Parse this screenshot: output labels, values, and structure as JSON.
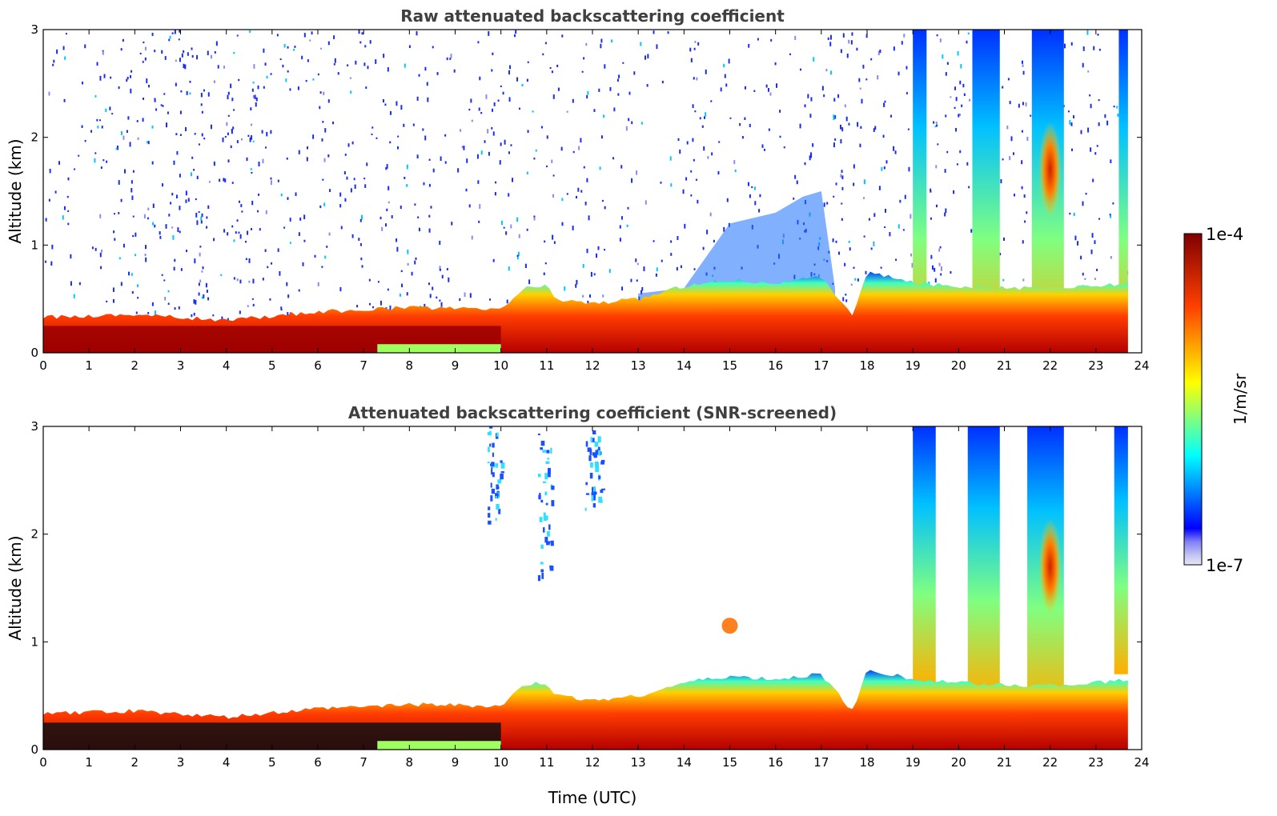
{
  "figure": {
    "colorbar": {
      "max_label": "1e-4",
      "min_label": "1e-7",
      "unit_label": "1/m/sr",
      "range": [
        1e-07,
        0.0001
      ],
      "scale": "log",
      "colormap": "jet",
      "low_end_colors": [
        "#e6e6f7",
        "#c3c3f3",
        "#a0a0f0",
        "#7b7bf2"
      ]
    }
  },
  "chart_data": [
    {
      "type": "heatmap",
      "title": "Raw attenuated backscattering coefficient",
      "xlabel": "",
      "ylabel": "Altitude (km)",
      "x_ticks": [
        "0",
        "1",
        "2",
        "3",
        "4",
        "5",
        "6",
        "7",
        "8",
        "9",
        "10",
        "11",
        "12",
        "13",
        "14",
        "15",
        "16",
        "17",
        "18",
        "19",
        "20",
        "21",
        "22",
        "23",
        "24"
      ],
      "y_ticks": [
        "0",
        "1",
        "2",
        "3"
      ],
      "xlim": [
        0,
        24
      ],
      "ylim": [
        0,
        3
      ],
      "x_units": "hours UTC",
      "y_units": "km",
      "grid": false,
      "features": {
        "boundary_layer_top_km": {
          "time": [
            0,
            2,
            4,
            6,
            8,
            10,
            10.5,
            11,
            11.2,
            12,
            13,
            14,
            15,
            16,
            17,
            17.4,
            17.7,
            18,
            19,
            20,
            21,
            22,
            23,
            23.7
          ],
          "height": [
            0.33,
            0.36,
            0.3,
            0.38,
            0.42,
            0.4,
            0.6,
            0.62,
            0.5,
            0.46,
            0.5,
            0.62,
            0.68,
            0.65,
            0.7,
            0.5,
            0.35,
            0.75,
            0.65,
            0.62,
            0.6,
            0.6,
            0.62,
            0.65
          ]
        },
        "aerosol_layer_top_km": {
          "time": [
            13,
            14,
            15,
            16,
            16.6,
            17,
            17.3
          ],
          "height": [
            0.55,
            0.6,
            1.2,
            1.3,
            1.45,
            1.5,
            0.6
          ]
        },
        "cloud_columns": [
          {
            "start": 19.0,
            "end": 19.3,
            "top_km": 3.0
          },
          {
            "start": 20.3,
            "end": 20.9,
            "top_km": 3.0
          },
          {
            "start": 21.6,
            "end": 22.3,
            "top_km": 3.0
          },
          {
            "start": 23.5,
            "end": 23.7,
            "top_km": 3.0
          }
        ],
        "peak_backscatter_time": 22.0,
        "peak_backscatter_height_km": 1.7,
        "data_end_time": 23.7
      }
    },
    {
      "type": "heatmap",
      "title": "Attenuated backscattering coefficient (SNR-screened)",
      "xlabel": "Time (UTC)",
      "ylabel": "Altitude (km)",
      "x_ticks": [
        "0",
        "1",
        "2",
        "3",
        "4",
        "5",
        "6",
        "7",
        "8",
        "9",
        "10",
        "11",
        "12",
        "13",
        "14",
        "15",
        "16",
        "17",
        "18",
        "19",
        "20",
        "21",
        "22",
        "23",
        "24"
      ],
      "y_ticks": [
        "0",
        "1",
        "2",
        "3"
      ],
      "xlim": [
        0,
        24
      ],
      "ylim": [
        0,
        3
      ],
      "x_units": "hours UTC",
      "y_units": "km",
      "grid": false,
      "features": {
        "screened_cloud_columns": [
          {
            "start": 9.7,
            "end": 10.0,
            "top_km": 3.0,
            "bottom_km": 2.1
          },
          {
            "start": 10.8,
            "end": 11.1,
            "top_km": 3.0,
            "bottom_km": 1.6
          },
          {
            "start": 11.8,
            "end": 12.2,
            "top_km": 3.0,
            "bottom_km": 2.2
          },
          {
            "start": 19.0,
            "end": 19.5,
            "top_km": 3.0,
            "bottom_km": 0.6
          },
          {
            "start": 20.2,
            "end": 20.9,
            "top_km": 3.0,
            "bottom_km": 0.5
          },
          {
            "start": 21.5,
            "end": 22.3,
            "top_km": 3.0,
            "bottom_km": 0.4
          },
          {
            "start": 23.4,
            "end": 23.7,
            "top_km": 3.0,
            "bottom_km": 0.7
          }
        ],
        "small_feature_time": 15.0,
        "small_feature_height_km": 1.15
      }
    }
  ]
}
